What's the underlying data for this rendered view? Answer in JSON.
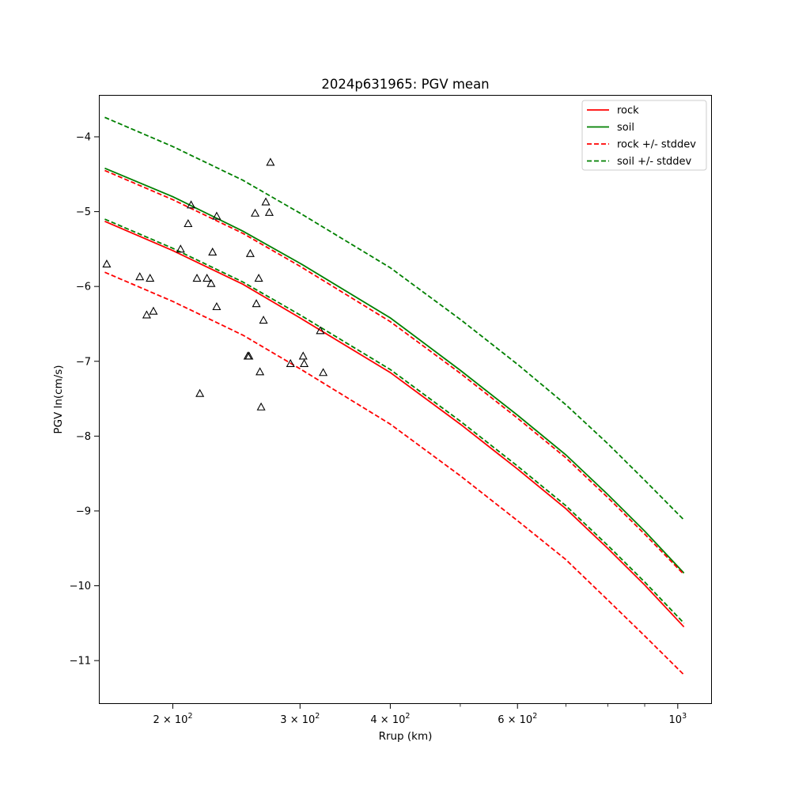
{
  "chart_data": {
    "type": "line",
    "title": "2024p631965: PGV mean",
    "xlabel": "Rrup (km)",
    "ylabel": "PGV ln(cm/s)",
    "xscale": "log",
    "xlim": [
      158,
      1115
    ],
    "ylim": [
      -11.58,
      -3.44
    ],
    "x_ticks": [
      {
        "value": 200,
        "base": "2",
        "exp": "2"
      },
      {
        "value": 300,
        "base": "3",
        "exp": "2"
      },
      {
        "value": 400,
        "base": "4",
        "exp": "2"
      },
      {
        "value": 600,
        "base": "6",
        "exp": "2"
      },
      {
        "value": 1000,
        "base": "10",
        "exp": "3",
        "plain": true
      }
    ],
    "y_ticks": [
      {
        "value": -4,
        "label": "−4"
      },
      {
        "value": -5,
        "label": "−5"
      },
      {
        "value": -6,
        "label": "−6"
      },
      {
        "value": -7,
        "label": "−7"
      },
      {
        "value": -8,
        "label": "−8"
      },
      {
        "value": -9,
        "label": "−9"
      },
      {
        "value": -10,
        "label": "−10"
      },
      {
        "value": -11,
        "label": "−11"
      }
    ],
    "grid": false,
    "legend_position": "top-right",
    "legend": [
      {
        "label": "rock",
        "color": "#ff0000",
        "style": "solid"
      },
      {
        "label": "soil",
        "color": "#008000",
        "style": "solid"
      },
      {
        "label": "rock +/- stddev",
        "color": "#ff0000",
        "style": "dashed"
      },
      {
        "label": "soil +/- stddev",
        "color": "#008000",
        "style": "dashed"
      }
    ],
    "curve_x": [
      161,
      200,
      250,
      300,
      400,
      500,
      600,
      700,
      800,
      900,
      1020
    ],
    "series": [
      {
        "group": "rock",
        "color": "#ff0000",
        "style": "solid",
        "values": [
          -5.13,
          -5.52,
          -5.97,
          -6.42,
          -7.15,
          -7.84,
          -8.44,
          -8.97,
          -9.5,
          -9.99,
          -10.55
        ]
      },
      {
        "group": "soil",
        "color": "#008000",
        "style": "solid",
        "values": [
          -4.42,
          -4.8,
          -5.26,
          -5.69,
          -6.42,
          -7.12,
          -7.72,
          -8.25,
          -8.78,
          -9.27,
          -9.83
        ]
      },
      {
        "group": "rock +/- stddev",
        "color": "#ff0000",
        "style": "dashed",
        "values": [
          -4.45,
          -4.84,
          -5.29,
          -5.73,
          -6.47,
          -7.16,
          -7.76,
          -8.29,
          -8.82,
          -9.31,
          -9.85
        ]
      },
      {
        "group": "rock +/- stddev",
        "color": "#ff0000",
        "style": "dashed",
        "values": [
          -5.81,
          -6.2,
          -6.65,
          -7.1,
          -7.84,
          -8.53,
          -9.13,
          -9.65,
          -10.19,
          -10.67,
          -11.19
        ]
      },
      {
        "group": "soil +/- stddev",
        "color": "#008000",
        "style": "dashed",
        "values": [
          -3.74,
          -4.13,
          -4.58,
          -5.02,
          -5.75,
          -6.44,
          -7.04,
          -7.58,
          -8.1,
          -8.59,
          -9.12
        ]
      },
      {
        "group": "soil +/- stddev",
        "color": "#008000",
        "style": "dashed",
        "values": [
          -5.1,
          -5.49,
          -5.94,
          -6.38,
          -7.11,
          -7.8,
          -8.4,
          -8.93,
          -9.46,
          -9.95,
          -10.5
        ]
      }
    ],
    "observations": {
      "marker": "open-triangle",
      "color": "#000000",
      "points": [
        [
          162,
          -5.7
        ],
        [
          180,
          -5.87
        ],
        [
          184,
          -6.38
        ],
        [
          186,
          -5.89
        ],
        [
          188,
          -6.33
        ],
        [
          205,
          -5.5
        ],
        [
          210,
          -5.16
        ],
        [
          212,
          -4.91
        ],
        [
          216,
          -5.89
        ],
        [
          218,
          -7.43
        ],
        [
          223,
          -5.89
        ],
        [
          226,
          -5.96
        ],
        [
          227,
          -5.54
        ],
        [
          230,
          -5.06
        ],
        [
          230,
          -6.27
        ],
        [
          254,
          -6.93
        ],
        [
          255,
          -6.93
        ],
        [
          256,
          -5.56
        ],
        [
          260,
          -5.02
        ],
        [
          261,
          -6.23
        ],
        [
          263,
          -5.89
        ],
        [
          264,
          -7.14
        ],
        [
          265,
          -7.61
        ],
        [
          267,
          -6.45
        ],
        [
          269,
          -4.87
        ],
        [
          272,
          -5.01
        ],
        [
          273,
          -4.34
        ],
        [
          291,
          -7.03
        ],
        [
          303,
          -6.93
        ],
        [
          304,
          -7.03
        ],
        [
          320,
          -6.59
        ],
        [
          323,
          -7.15
        ]
      ]
    }
  }
}
